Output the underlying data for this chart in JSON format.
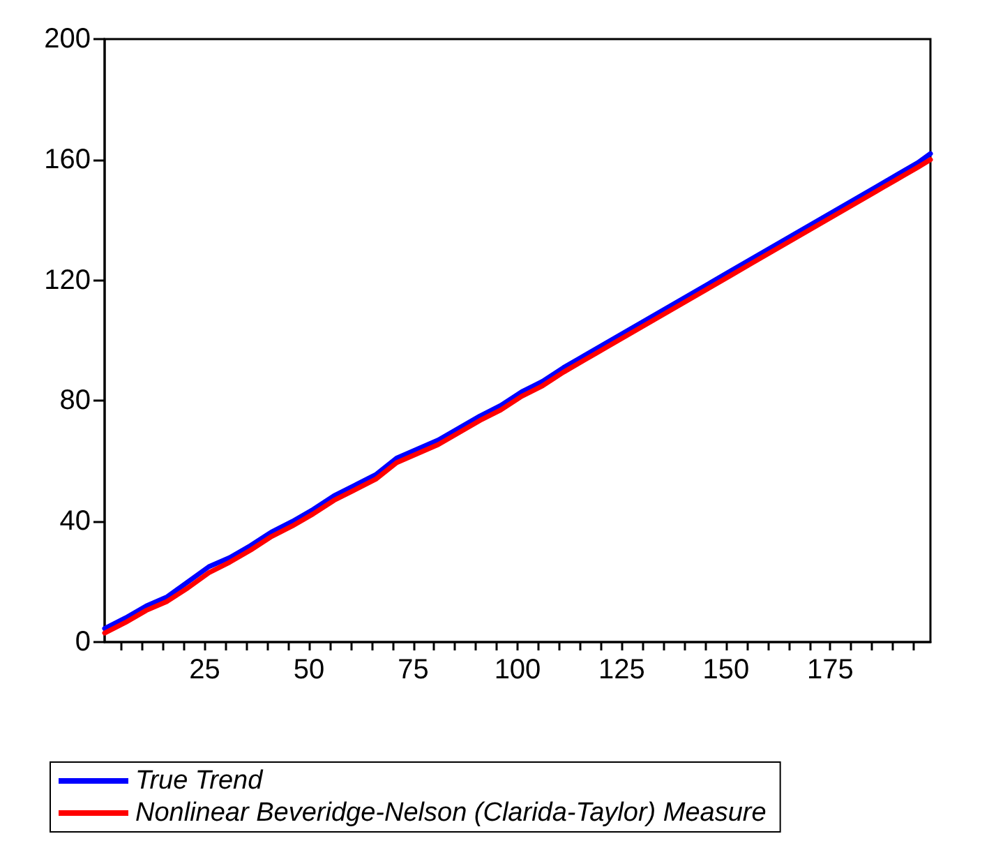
{
  "chart_data": {
    "type": "line",
    "x": [
      1,
      6,
      11,
      16,
      21,
      26,
      31,
      36,
      41,
      46,
      51,
      56,
      61,
      66,
      71,
      76,
      81,
      86,
      91,
      96,
      101,
      106,
      111,
      116,
      121,
      126,
      131,
      136,
      141,
      146,
      151,
      156,
      161,
      166,
      171,
      176,
      181,
      186,
      191,
      196,
      199
    ],
    "series": [
      {
        "name": "True Trend",
        "color": "#0000ff",
        "values": [
          4.5,
          8,
          12,
          15,
          20,
          25,
          28,
          32,
          36.5,
          40,
          44,
          48.5,
          52,
          55.5,
          61,
          64,
          67,
          71,
          75,
          78.5,
          83,
          86.5,
          91,
          95,
          99,
          103,
          107,
          111,
          115,
          119,
          123,
          127,
          131,
          135,
          139,
          143,
          147,
          151,
          155,
          159,
          162
        ]
      },
      {
        "name": "Nonlinear Beveridge-Nelson (Clarida-Taylor) Measure",
        "color": "#ff0000",
        "values": [
          3,
          6.5,
          10.5,
          13.5,
          18,
          23,
          26.5,
          30.5,
          35,
          38.5,
          42.5,
          47,
          50.5,
          54,
          59.5,
          62.5,
          65.5,
          69.5,
          73.5,
          77,
          81.5,
          85,
          89.5,
          93.5,
          97.5,
          101.5,
          105.5,
          109.5,
          113.5,
          117.5,
          121.5,
          125.5,
          129.5,
          133.5,
          137.5,
          141.5,
          145.5,
          149.5,
          153.5,
          157.5,
          160
        ]
      }
    ],
    "xlim": [
      1,
      199
    ],
    "xticks": [
      {
        "value": 5,
        "label": null
      },
      {
        "value": 10,
        "label": null
      },
      {
        "value": 15,
        "label": null
      },
      {
        "value": 20,
        "label": null
      },
      25,
      {
        "value": 30,
        "label": null
      },
      {
        "value": 35,
        "label": null
      },
      {
        "value": 40,
        "label": null
      },
      {
        "value": 45,
        "label": null
      },
      50,
      {
        "value": 55,
        "label": null
      },
      {
        "value": 60,
        "label": null
      },
      {
        "value": 65,
        "label": null
      },
      {
        "value": 70,
        "label": null
      },
      75,
      {
        "value": 80,
        "label": null
      },
      {
        "value": 85,
        "label": null
      },
      {
        "value": 90,
        "label": null
      },
      {
        "value": 95,
        "label": null
      },
      100,
      {
        "value": 105,
        "label": null
      },
      {
        "value": 110,
        "label": null
      },
      {
        "value": 115,
        "label": null
      },
      {
        "value": 120,
        "label": null
      },
      125,
      {
        "value": 130,
        "label": null
      },
      {
        "value": 135,
        "label": null
      },
      {
        "value": 140,
        "label": null
      },
      {
        "value": 145,
        "label": null
      },
      150,
      {
        "value": 155,
        "label": null
      },
      {
        "value": 160,
        "label": null
      },
      {
        "value": 165,
        "label": null
      },
      {
        "value": 170,
        "label": null
      },
      175,
      {
        "value": 180,
        "label": null
      },
      {
        "value": 185,
        "label": null
      },
      {
        "value": 190,
        "label": null
      },
      {
        "value": 195,
        "label": null
      }
    ],
    "ylim": [
      0,
      200
    ],
    "yticks": [
      0,
      40,
      80,
      120,
      160,
      200
    ],
    "grid": false,
    "legend": "bottom",
    "marker": "none",
    "line_style": "solid"
  }
}
